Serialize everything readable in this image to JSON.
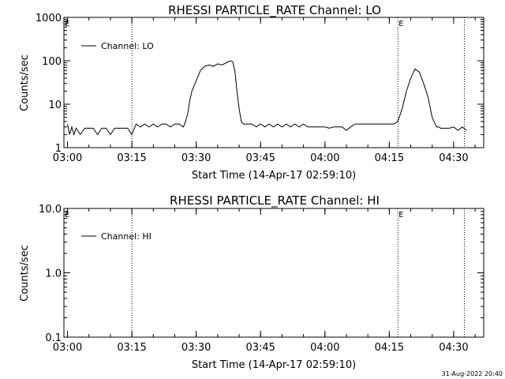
{
  "chart_data": [
    {
      "type": "line",
      "title": "RHESSI PARTICLE_RATE Channel: LO",
      "xlabel": "Start Time (14-Apr-17 02:59:10)",
      "ylabel": "Counts/sec",
      "y_scale": "log",
      "ylim": [
        1,
        1000
      ],
      "xlim": [
        "02:59:10",
        "04:37:00"
      ],
      "x_ticks": [
        "03:00",
        "03:15",
        "03:30",
        "03:45",
        "04:00",
        "04:15",
        "04:30"
      ],
      "y_ticks": [
        "1",
        "10",
        "100",
        "1000"
      ],
      "legend": "top-left",
      "markers": [
        {
          "time": "03:15:00",
          "label": ""
        },
        {
          "time": "04:17:00",
          "label": "E"
        },
        {
          "time": "04:32:30",
          "label": ""
        }
      ],
      "start_marker_label": "E",
      "series": [
        {
          "name": "Channel: LO",
          "x": [
            "03:00",
            "03:00:30",
            "03:01",
            "03:01:30",
            "03:02",
            "03:03",
            "03:04",
            "03:05",
            "03:06",
            "03:07",
            "03:08",
            "03:09",
            "03:10",
            "03:11",
            "03:12",
            "03:13",
            "03:14",
            "03:15",
            "03:16",
            "03:17",
            "03:18",
            "03:19",
            "03:20",
            "03:21",
            "03:22",
            "03:23",
            "03:24",
            "03:25",
            "03:26",
            "03:27",
            "03:27:30",
            "03:28",
            "03:28:30",
            "03:29",
            "03:30",
            "03:31",
            "03:32",
            "03:33",
            "03:34",
            "03:35",
            "03:36",
            "03:37",
            "03:38",
            "03:38:30",
            "03:39",
            "03:39:30",
            "03:40",
            "03:40:30",
            "03:41",
            "03:42",
            "03:43",
            "03:44",
            "03:45",
            "03:46",
            "03:47",
            "03:48",
            "03:49",
            "03:50",
            "03:51",
            "03:52",
            "03:53",
            "03:54",
            "03:55",
            "03:56",
            "03:57",
            "03:58",
            "03:59",
            "04:00",
            "04:01",
            "04:02",
            "04:03",
            "04:04",
            "04:05",
            "04:06",
            "04:07",
            "04:08",
            "04:09",
            "04:10",
            "04:11",
            "04:12",
            "04:13",
            "04:14",
            "04:15",
            "04:16",
            "04:17",
            "04:18",
            "04:19",
            "04:20",
            "04:21",
            "04:22",
            "04:23",
            "04:24",
            "04:25",
            "04:26",
            "04:26:30",
            "04:27",
            "04:28",
            "04:29",
            "04:30",
            "04:31",
            "04:32",
            "04:33"
          ],
          "y": [
            3.5,
            2.0,
            3.0,
            2.0,
            2.8,
            2.0,
            2.8,
            2.8,
            2.8,
            2.0,
            2.8,
            2.8,
            2.0,
            2.8,
            2.8,
            2.8,
            2.8,
            2.0,
            3.5,
            3.0,
            3.5,
            3.0,
            3.5,
            3.0,
            3.5,
            3.5,
            3.0,
            3.5,
            3.5,
            3.0,
            4.0,
            6.0,
            12,
            20,
            35,
            60,
            75,
            80,
            75,
            85,
            80,
            90,
            100,
            95,
            60,
            20,
            8,
            4,
            3.5,
            3.5,
            3.5,
            3.0,
            3.5,
            3.0,
            3.5,
            3.0,
            3.5,
            3.0,
            3.5,
            3.0,
            3.5,
            3.0,
            3.5,
            3.0,
            3.0,
            3.0,
            3.0,
            3.0,
            2.8,
            3.0,
            3.0,
            3.0,
            2.5,
            3.0,
            3.5,
            3.5,
            3.5,
            3.5,
            3.5,
            3.5,
            3.5,
            3.5,
            3.5,
            3.5,
            4.0,
            8,
            20,
            40,
            65,
            55,
            30,
            15,
            5,
            3.0,
            3.0,
            2.8,
            2.8,
            2.8,
            3.0,
            2.5,
            3.0,
            2.5
          ]
        }
      ]
    },
    {
      "type": "line",
      "title": "RHESSI PARTICLE_RATE Channel: HI",
      "xlabel": "Start Time (14-Apr-17 02:59:10)",
      "ylabel": "Counts/sec",
      "y_scale": "log",
      "ylim": [
        0.1,
        10
      ],
      "xlim": [
        "02:59:10",
        "04:37:00"
      ],
      "x_ticks": [
        "03:00",
        "03:15",
        "03:30",
        "03:45",
        "04:00",
        "04:15",
        "04:30"
      ],
      "y_ticks": [
        "0.1",
        "1.0",
        "10.0"
      ],
      "legend": "top-left",
      "markers": [
        {
          "time": "03:15:00",
          "label": ""
        },
        {
          "time": "04:17:00",
          "label": "E"
        },
        {
          "time": "04:32:30",
          "label": ""
        }
      ],
      "start_marker_label": "E",
      "series": [
        {
          "name": "Channel: HI",
          "x": [],
          "y": []
        }
      ]
    }
  ],
  "footer": {
    "timestamp": "31-Aug-2022 20:40"
  }
}
